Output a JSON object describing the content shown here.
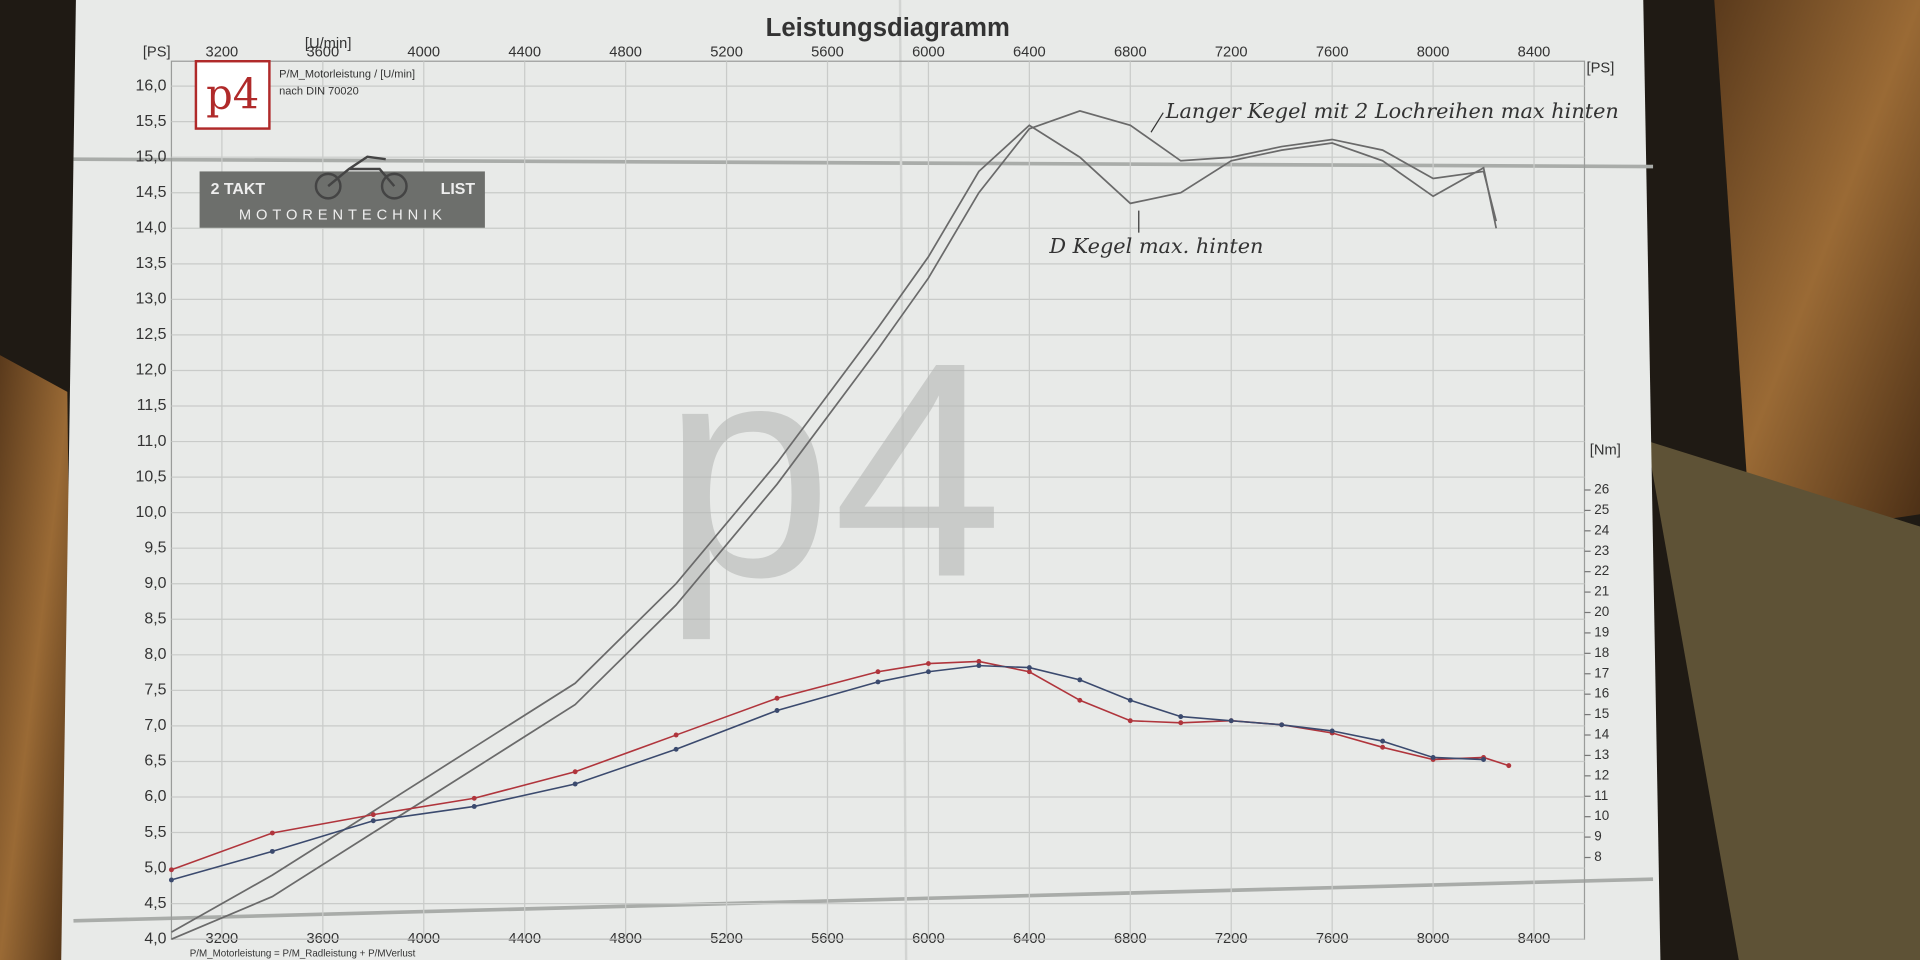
{
  "chart_data": {
    "type": "line",
    "title": "Leistungsdiagramm",
    "subtitle": "P/M_Motorleistung / [U/min]",
    "note": "nach DIN 70020",
    "footer": "P/M_Motorleistung = P/M_Radleistung + P/MVerlust",
    "x_label": "[U/min]",
    "y_label": "[PS]",
    "y2_label": "[Nm]",
    "logo": {
      "mark": "p4",
      "brand_left": "2 TAKT",
      "brand_right": "LIST",
      "brand_bottom": "MOTORENTECHNIK"
    },
    "xlim": [
      3000,
      8600
    ],
    "xticks": [
      3200,
      3600,
      4000,
      4400,
      4800,
      5200,
      5600,
      6000,
      6400,
      6800,
      7200,
      7600,
      8000,
      8400
    ],
    "ylim": [
      4.0,
      16.35
    ],
    "yticks": [
      {
        "value": 4.0,
        "label": "4,0"
      },
      {
        "value": 4.5,
        "label": "4,5"
      },
      {
        "value": 5.0,
        "label": "5,0"
      },
      {
        "value": 5.5,
        "label": "5,5"
      },
      {
        "value": 6.0,
        "label": "6,0"
      },
      {
        "value": 6.5,
        "label": "6,5"
      },
      {
        "value": 7.0,
        "label": "7,0"
      },
      {
        "value": 7.5,
        "label": "7,5"
      },
      {
        "value": 8.0,
        "label": "8,0"
      },
      {
        "value": 8.5,
        "label": "8,5"
      },
      {
        "value": 9.0,
        "label": "9,0"
      },
      {
        "value": 9.5,
        "label": "9,5"
      },
      {
        "value": 10.0,
        "label": "10,0"
      },
      {
        "value": 10.5,
        "label": "10,5"
      },
      {
        "value": 11.0,
        "label": "11,0"
      },
      {
        "value": 11.5,
        "label": "11,5"
      },
      {
        "value": 12.0,
        "label": "12,0"
      },
      {
        "value": 12.5,
        "label": "12,5"
      },
      {
        "value": 13.0,
        "label": "13,0"
      },
      {
        "value": 13.5,
        "label": "13,5"
      },
      {
        "value": 14.0,
        "label": "14,0"
      },
      {
        "value": 14.5,
        "label": "14,5"
      },
      {
        "value": 15.0,
        "label": "15,0"
      },
      {
        "value": 15.5,
        "label": "15,5"
      },
      {
        "value": 16.0,
        "label": "16,0"
      }
    ],
    "y2lim": [
      4.0,
      47.0
    ],
    "y2ticks": [
      8,
      9,
      10,
      11,
      12,
      13,
      14,
      15,
      16,
      17,
      18,
      19,
      20,
      21,
      22,
      23,
      24,
      25,
      26
    ],
    "grid": true,
    "series": [
      {
        "name": "Langer Kegel mit 2 Lochreihen max hinten",
        "color": "#6a6a6a",
        "axis": "y",
        "x": [
          3000,
          3400,
          3800,
          4200,
          4600,
          5000,
          5400,
          5800,
          6000,
          6200,
          6400,
          6600,
          6800,
          7000,
          7200,
          7400,
          7600,
          7800,
          8000,
          8200,
          8250
        ],
        "values": [
          4.0,
          4.6,
          5.5,
          6.4,
          7.3,
          8.7,
          10.4,
          12.3,
          13.3,
          14.5,
          15.4,
          15.65,
          15.45,
          14.95,
          15.0,
          15.15,
          15.25,
          15.1,
          14.7,
          14.8,
          14.1
        ]
      },
      {
        "name": "D Kegel max. hinten",
        "color": "#6a6a6a",
        "axis": "y",
        "x": [
          3000,
          3400,
          3800,
          4200,
          4600,
          5000,
          5400,
          5800,
          6000,
          6200,
          6400,
          6600,
          6800,
          7000,
          7200,
          7400,
          7600,
          7800,
          8000,
          8200,
          8250
        ],
        "values": [
          4.1,
          4.9,
          5.8,
          6.7,
          7.6,
          9.0,
          10.7,
          12.6,
          13.6,
          14.8,
          15.45,
          15.0,
          14.35,
          14.5,
          14.95,
          15.1,
          15.2,
          14.95,
          14.45,
          14.85,
          14.0
        ]
      },
      {
        "color": "#b0353c",
        "axis": "y2",
        "markers": true,
        "x": [
          3000,
          3400,
          3800,
          4200,
          4600,
          5000,
          5400,
          5800,
          6000,
          6200,
          6400,
          6600,
          6800,
          7000,
          7200,
          7400,
          7600,
          7800,
          8000,
          8200,
          8300
        ],
        "values": [
          7.4,
          9.2,
          10.1,
          10.9,
          12.2,
          14.0,
          15.8,
          17.1,
          17.5,
          17.6,
          17.1,
          15.7,
          14.7,
          14.6,
          14.7,
          14.5,
          14.1,
          13.4,
          12.8,
          12.9,
          12.5
        ]
      },
      {
        "color": "#3b4a6e",
        "axis": "y2",
        "markers": true,
        "x": [
          3000,
          3400,
          3800,
          4200,
          4600,
          5000,
          5400,
          5800,
          6000,
          6200,
          6400,
          6600,
          6800,
          7000,
          7200,
          7400,
          7600,
          7800,
          8000,
          8200,
          8300
        ],
        "values": [
          6.9,
          8.3,
          9.8,
          10.5,
          11.6,
          13.3,
          15.2,
          16.6,
          17.1,
          17.4,
          17.3,
          16.7,
          15.7,
          14.9,
          14.7,
          14.5,
          14.2,
          13.7,
          12.9,
          12.8,
          null
        ]
      }
    ]
  }
}
